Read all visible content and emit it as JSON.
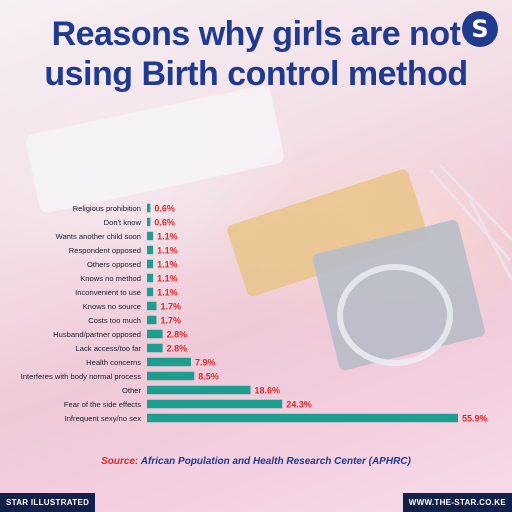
{
  "header": {
    "title_line1": "Reasons why girls are not",
    "title_line2": "using Birth control method",
    "logo_letter": "S"
  },
  "chart_data": {
    "type": "bar",
    "orientation": "horizontal",
    "categories": [
      "Religious prohibition",
      "Don't know",
      "Wants another child soon",
      "Respondent opposed",
      "Others opposed",
      "Knows no method",
      "Inconvenient to use",
      "Knows no source",
      "Costs too much",
      "Husband/partner opposed",
      "Lack access/too far",
      "Health concerns",
      "Interferes with body normal  process",
      "Other",
      "Fear of the side effects",
      "Infrequent sexy/no sex"
    ],
    "values": [
      0.6,
      0.6,
      1.1,
      1.1,
      1.1,
      1.1,
      1.1,
      1.7,
      1.7,
      2.8,
      2.8,
      7.9,
      8.5,
      18.6,
      24.3,
      55.9
    ],
    "value_labels": [
      "0.6%",
      "0.6%",
      "1.1%",
      "1.1%",
      "1.1%",
      "1.1%",
      "1.1%",
      "1.7%",
      "1.7%",
      "2.8%",
      "2.8%",
      "7.9%",
      "8.5%",
      "18.6%",
      "24.3%",
      "55.9%"
    ],
    "xlim": [
      0,
      60
    ],
    "bar_color": "#1d9e8e",
    "value_label_color": "#d62b2b"
  },
  "source": {
    "label": "Source:",
    "text": "African Population and Health Research Center (APHRC)"
  },
  "footer": {
    "left": "STAR ILLUSTRATED",
    "right": "WWW.THE-STAR.CO.KE"
  },
  "colors": {
    "title": "#1f3a8f",
    "footer_bg": "#13204a"
  }
}
